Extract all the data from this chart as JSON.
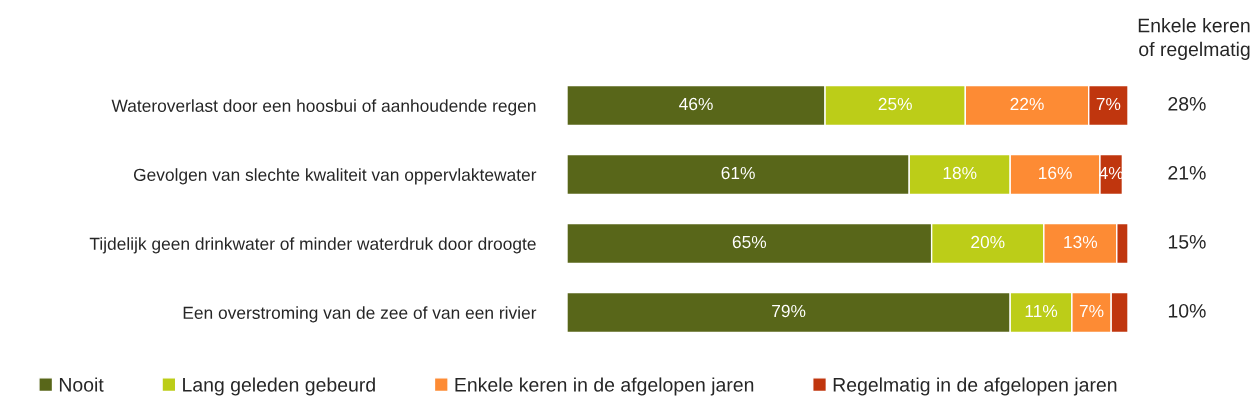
{
  "chart_data": {
    "type": "bar",
    "orientation": "horizontal",
    "stacked": true,
    "categories": [
      "Wateroverlast door een hoosbui of aanhoudende regen",
      "Gevolgen van slechte kwaliteit van oppervlaktewater",
      "Tijdelijk geen drinkwater of minder waterdruk door droogte",
      "Een overstroming van de zee of van een rivier"
    ],
    "series": [
      {
        "name": "Nooit",
        "color": "#586619",
        "values": [
          46,
          61,
          65,
          79
        ],
        "value_labels": [
          "46%",
          "61%",
          "65%",
          "79%"
        ]
      },
      {
        "name": "Lang geleden gebeurd",
        "color": "#bccd18",
        "values": [
          25,
          18,
          20,
          11
        ],
        "value_labels": [
          "25%",
          "18%",
          "20%",
          "11%"
        ]
      },
      {
        "name": "Enkele keren in de afgelopen jaren",
        "color": "#fd8b34",
        "values": [
          22,
          16,
          13,
          7
        ],
        "value_labels": [
          "22%",
          "16%",
          "13%",
          "7%"
        ]
      },
      {
        "name": "Regelmatig in de afgelopen jaren",
        "color": "#c0360e",
        "values": [
          7,
          4,
          2,
          3
        ],
        "value_labels": [
          "7%",
          "4%",
          null,
          null
        ]
      }
    ],
    "annotations": [
      "Enkele keren\nof regelmatig",
      "28%",
      "21%",
      "15%",
      "10%"
    ],
    "legend": "bottom",
    "grid": false
  }
}
